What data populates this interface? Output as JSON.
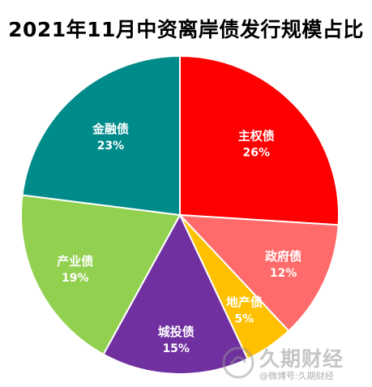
{
  "chart_data": {
    "type": "pie",
    "title": "2021年11月中资离岸债发行规模占比",
    "unit": "%",
    "start_angle_deg": 0,
    "direction": "clockwise",
    "slices": [
      {
        "label": "主权债",
        "value": 26,
        "value_label": "26%",
        "color": "#fe0000"
      },
      {
        "label": "政府债",
        "value": 12,
        "value_label": "12%",
        "color": "#ff6b6b"
      },
      {
        "label": "地产债",
        "value": 5,
        "value_label": "5%",
        "color": "#ffc000"
      },
      {
        "label": "城投债",
        "value": 15,
        "value_label": "15%",
        "color": "#7030a0"
      },
      {
        "label": "产业债",
        "value": 19,
        "value_label": "19%",
        "color": "#92d050"
      },
      {
        "label": "金融债",
        "value": 23,
        "value_label": "23%",
        "color": "#008b8b"
      }
    ],
    "legend": "none",
    "data_labels": "inside"
  },
  "watermark": {
    "brand": "久期财经",
    "sub": "@微博号:久期财经"
  }
}
